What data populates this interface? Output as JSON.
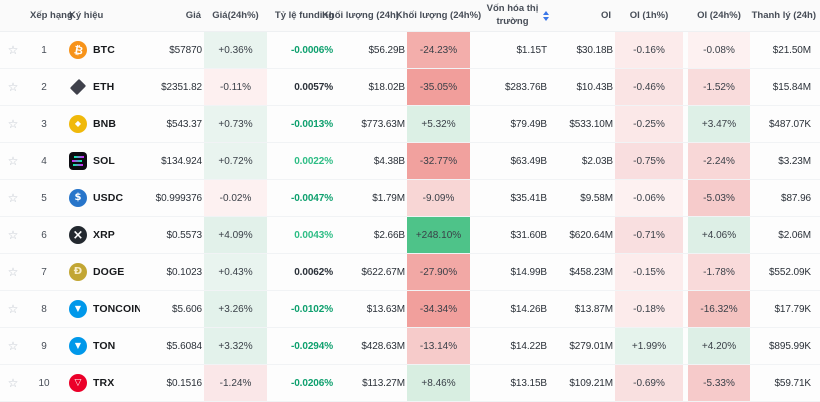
{
  "table": {
    "columns": [
      {
        "key": "fav",
        "label": ""
      },
      {
        "key": "rank",
        "label": "Xếp hạng"
      },
      {
        "key": "symbol",
        "label": "Ký hiệu"
      },
      {
        "key": "price",
        "label": "Giá"
      },
      {
        "key": "price_24h_pct",
        "label": "Giá(24h%)"
      },
      {
        "key": "funding",
        "label": "Tỷ lệ funding"
      },
      {
        "key": "volume_24h",
        "label": "Khối lượng (24h)"
      },
      {
        "key": "volume_24h_pct",
        "label": "Khối lượng (24h%)"
      },
      {
        "key": "market_cap",
        "label": "Vốn hóa thị trường",
        "sortable": true
      },
      {
        "key": "oi",
        "label": "OI"
      },
      {
        "key": "oi_1h_pct",
        "label": "OI (1h%)"
      },
      {
        "key": "oi_24h_pct",
        "label": "OI (24h%)"
      },
      {
        "key": "liquidation_24h",
        "label": "Thanh lý (24h)"
      }
    ],
    "rows": [
      {
        "rank": "1",
        "symbol": "BTC",
        "icon": "btc",
        "price": "$57870",
        "price_24h_pct": "+0.36%",
        "price_24h_bg": "#e9f4ef",
        "funding": "-0.0006%",
        "funding_color": "#0ea06e",
        "volume_24h": "$56.29B",
        "volume_24h_pct": "-24.23%",
        "volume_24h_bg": "#f3aeab",
        "market_cap": "$1.15T",
        "oi": "$30.18B",
        "oi_1h_pct": "-0.16%",
        "oi_1h_bg": "#fcebeb",
        "oi_24h_pct": "-0.08%",
        "oi_24h_bg": "#fdf1f1",
        "liq_24h": "$21.50M"
      },
      {
        "rank": "2",
        "symbol": "ETH",
        "icon": "eth",
        "price": "$2351.82",
        "price_24h_pct": "-0.11%",
        "price_24h_bg": "#fdf0f0",
        "funding": "0.0057%",
        "funding_color": "#2b3139",
        "volume_24h": "$18.02B",
        "volume_24h_pct": "-35.05%",
        "volume_24h_bg": "#f19e9b",
        "market_cap": "$283.76B",
        "oi": "$10.43B",
        "oi_1h_pct": "-0.46%",
        "oi_1h_bg": "#fae4e4",
        "oi_24h_pct": "-1.52%",
        "oi_24h_bg": "#f9dcdc",
        "liq_24h": "$15.84M"
      },
      {
        "rank": "3",
        "symbol": "BNB",
        "icon": "bnb",
        "price": "$543.37",
        "price_24h_pct": "+0.73%",
        "price_24h_bg": "#e9f4ef",
        "funding": "-0.0013%",
        "funding_color": "#0ea06e",
        "volume_24h": "$773.63M",
        "volume_24h_pct": "+5.32%",
        "volume_24h_bg": "#dcf0e5",
        "market_cap": "$79.49B",
        "oi": "$533.10M",
        "oi_1h_pct": "-0.25%",
        "oi_1h_bg": "#fbe8e8",
        "oi_24h_pct": "+3.47%",
        "oi_24h_bg": "#def0e7",
        "liq_24h": "$487.07K"
      },
      {
        "rank": "4",
        "symbol": "SOL",
        "icon": "sol",
        "price": "$134.924",
        "price_24h_pct": "+0.72%",
        "price_24h_bg": "#e9f4ef",
        "funding": "0.0022%",
        "funding_color": "#2ebd85",
        "volume_24h": "$4.38B",
        "volume_24h_pct": "-32.77%",
        "volume_24h_bg": "#f1a19e",
        "market_cap": "$63.49B",
        "oi": "$2.03B",
        "oi_1h_pct": "-0.75%",
        "oi_1h_bg": "#f9dedf",
        "oi_24h_pct": "-2.24%",
        "oi_24h_bg": "#f8d7d7",
        "liq_24h": "$3.23M"
      },
      {
        "rank": "5",
        "symbol": "USDC",
        "icon": "usdc",
        "price": "$0.999376",
        "price_24h_pct": "-0.02%",
        "price_24h_bg": "#fdf1f1",
        "funding": "-0.0047%",
        "funding_color": "#0ea06e",
        "volume_24h": "$1.79M",
        "volume_24h_pct": "-9.09%",
        "volume_24h_bg": "#f8d6d5",
        "market_cap": "$35.41B",
        "oi": "$9.58M",
        "oi_1h_pct": "-0.06%",
        "oi_1h_bg": "#fdf1f1",
        "oi_24h_pct": "-5.03%",
        "oi_24h_bg": "#f6cbcb",
        "liq_24h": "$87.96"
      },
      {
        "rank": "6",
        "symbol": "XRP",
        "icon": "xrp",
        "price": "$0.5573",
        "price_24h_pct": "+4.09%",
        "price_24h_bg": "#e2f1ea",
        "funding": "0.0043%",
        "funding_color": "#2ebd85",
        "volume_24h": "$2.66B",
        "volume_24h_pct": "+248.10%",
        "volume_24h_bg": "#4ec389",
        "market_cap": "$31.60B",
        "oi": "$620.64M",
        "oi_1h_pct": "-0.71%",
        "oi_1h_bg": "#f9dfe0",
        "oi_24h_pct": "+4.06%",
        "oi_24h_bg": "#ddefe6",
        "liq_24h": "$2.06M"
      },
      {
        "rank": "7",
        "symbol": "DOGE",
        "icon": "doge",
        "price": "$0.1023",
        "price_24h_pct": "+0.43%",
        "price_24h_bg": "#e9f4ef",
        "funding": "0.0062%",
        "funding_color": "#2b3139",
        "volume_24h": "$622.67M",
        "volume_24h_pct": "-27.90%",
        "volume_24h_bg": "#f2a8a5",
        "market_cap": "$14.99B",
        "oi": "$458.23M",
        "oi_1h_pct": "-0.15%",
        "oi_1h_bg": "#fcecec",
        "oi_24h_pct": "-1.78%",
        "oi_24h_bg": "#f9dada",
        "liq_24h": "$552.09K"
      },
      {
        "rank": "8",
        "symbol": "TONCOIN",
        "icon": "ton",
        "price": "$5.606",
        "price_24h_pct": "+3.26%",
        "price_24h_bg": "#e3f2eb",
        "funding": "-0.0102%",
        "funding_color": "#0ea06e",
        "volume_24h": "$13.63M",
        "volume_24h_pct": "-34.34%",
        "volume_24h_bg": "#f19f9c",
        "market_cap": "$14.26B",
        "oi": "$13.87M",
        "oi_1h_pct": "-0.18%",
        "oi_1h_bg": "#fcebeb",
        "oi_24h_pct": "-16.32%",
        "oi_24h_bg": "#f4c2c0",
        "liq_24h": "$17.79K"
      },
      {
        "rank": "9",
        "symbol": "TON",
        "icon": "ton",
        "price": "$5.6084",
        "price_24h_pct": "+3.32%",
        "price_24h_bg": "#e3f2eb",
        "funding": "-0.0294%",
        "funding_color": "#0ea06e",
        "volume_24h": "$428.63M",
        "volume_24h_pct": "-13.14%",
        "volume_24h_bg": "#f6cbca",
        "market_cap": "$14.22B",
        "oi": "$279.01M",
        "oi_1h_pct": "+1.99%",
        "oi_1h_bg": "#e5f3ec",
        "oi_24h_pct": "+4.20%",
        "oi_24h_bg": "#ddefe6",
        "liq_24h": "$895.99K"
      },
      {
        "rank": "10",
        "symbol": "TRX",
        "icon": "trx",
        "price": "$0.1516",
        "price_24h_pct": "-1.24%",
        "price_24h_bg": "#fae7e8",
        "funding": "-0.0206%",
        "funding_color": "#0ea06e",
        "volume_24h": "$113.27M",
        "volume_24h_pct": "+8.46%",
        "volume_24h_bg": "#d8eee1",
        "market_cap": "$13.15B",
        "oi": "$109.21M",
        "oi_1h_pct": "-0.69%",
        "oi_1h_bg": "#f9e0e0",
        "oi_24h_pct": "-5.33%",
        "oi_24h_bg": "#f6caca",
        "liq_24h": "$59.71K"
      }
    ]
  },
  "icons": {
    "btc": {
      "shape": "circle",
      "bg": "#f7931a",
      "fg": "#ffffff",
      "glyph": "₿"
    },
    "eth": {
      "shape": "diamond",
      "bg": "#3f414b",
      "fg": "#3f414b",
      "glyph": ""
    },
    "bnb": {
      "shape": "circle",
      "bg": "#f0b90b",
      "fg": "#ffffff",
      "glyph": "◆"
    },
    "sol": {
      "shape": "sol",
      "bg": "#0d0d12",
      "fg": "#00ffa3",
      "glyph": ""
    },
    "usdc": {
      "shape": "circle",
      "bg": "#2775ca",
      "fg": "#ffffff",
      "glyph": "$"
    },
    "xrp": {
      "shape": "circle",
      "bg": "#23292f",
      "fg": "#ffffff",
      "glyph": "×"
    },
    "doge": {
      "shape": "circle",
      "bg": "#c2a633",
      "fg": "#f8edc8",
      "glyph": "Ð"
    },
    "ton": {
      "shape": "circle",
      "bg": "#0098ea",
      "fg": "#ffffff",
      "glyph": "▼"
    },
    "trx": {
      "shape": "circle",
      "bg": "#eb0029",
      "fg": "#ffffff",
      "glyph": "▽"
    }
  },
  "colors": {
    "header_bg": "#fafafa",
    "row_bg": "#fdfdfd",
    "border": "#f1f3f5",
    "text_dark": "#2b3139",
    "text_gray": "#474d57",
    "star": "#bcc3cc",
    "sort_accent": "#3a77e8",
    "green_strong": "#4ec389",
    "green_text": "#0ea06e",
    "green_text_bright": "#2ebd85"
  }
}
